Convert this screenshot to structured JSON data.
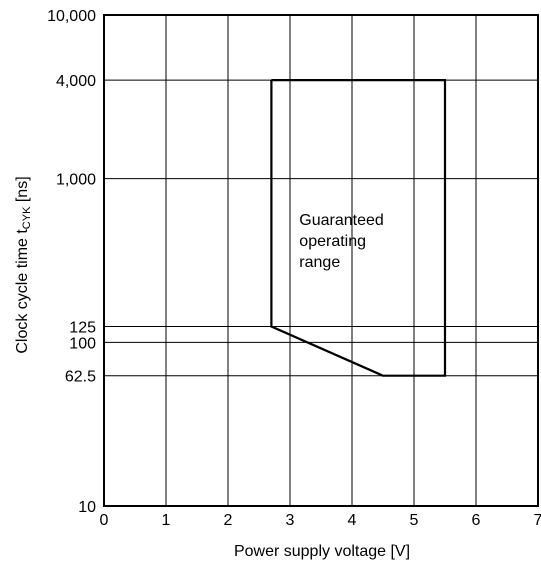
{
  "chart_data": {
    "type": "line",
    "title": "",
    "xlabel": "Power supply voltage [V]",
    "ylabel_main": "Clock cycle time t",
    "ylabel_sub": "CYK",
    "ylabel_unit": " [ns]",
    "xlim": [
      0,
      7
    ],
    "ylim": [
      10,
      10000
    ],
    "y_scale": "log",
    "grid": true,
    "x_ticks": [
      {
        "value": 0,
        "label": "0"
      },
      {
        "value": 1,
        "label": "1"
      },
      {
        "value": 2,
        "label": "2"
      },
      {
        "value": 3,
        "label": "3"
      },
      {
        "value": 4,
        "label": "4"
      },
      {
        "value": 5,
        "label": "5"
      },
      {
        "value": 6,
        "label": "6"
      },
      {
        "value": 7,
        "label": "7"
      }
    ],
    "y_ticks": [
      {
        "value": 10,
        "label": "10"
      },
      {
        "value": 62.5,
        "label": "62.5"
      },
      {
        "value": 100,
        "label": "100"
      },
      {
        "value": 125,
        "label": "125"
      },
      {
        "value": 1000,
        "label": "1,000"
      },
      {
        "value": 4000,
        "label": "4,000"
      },
      {
        "value": 10000,
        "label": "10,000"
      }
    ],
    "series": [
      {
        "points": [
          {
            "x": 2.7,
            "y": 4000
          },
          {
            "x": 5.5,
            "y": 4000
          },
          {
            "x": 5.5,
            "y": 62.5
          },
          {
            "x": 4.5,
            "y": 62.5
          },
          {
            "x": 2.7,
            "y": 125
          },
          {
            "x": 2.7,
            "y": 4000
          }
        ]
      }
    ],
    "annotation": {
      "lines": [
        "Guaranteed",
        "operating",
        "range"
      ],
      "x": 3.15,
      "y": 520
    }
  }
}
